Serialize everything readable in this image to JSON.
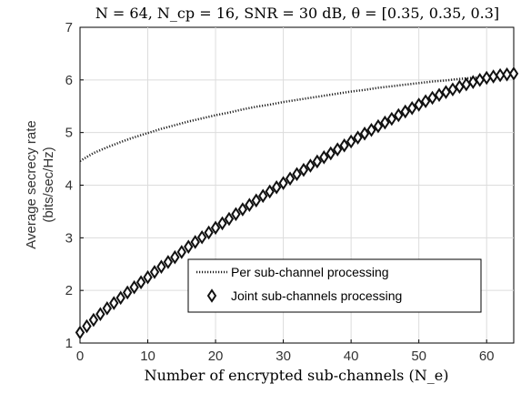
{
  "chart_data": {
    "type": "line",
    "title": "N = 64, N_cp = 16, SNR = 30 dB, θ = [0.35, 0.35, 0.3]",
    "xlabel": "Number of encrypted sub-channels (N_e)",
    "ylabel": "Average secrecy rate (bits/sec/Hz)",
    "ylabel_line1": "Average secrecy rate",
    "ylabel_line2": "(bits/sec/Hz)",
    "xlim": [
      0,
      64
    ],
    "ylim": [
      1,
      7
    ],
    "xticks": [
      0,
      10,
      20,
      30,
      40,
      50,
      60
    ],
    "yticks": [
      1,
      2,
      3,
      4,
      5,
      6,
      7
    ],
    "grid": true,
    "legend_position": "lower-right",
    "series": [
      {
        "name": "Per sub-channel processing",
        "style": "dotted",
        "color": "#222222",
        "x": [
          0,
          2,
          4,
          6,
          8,
          10,
          12,
          14,
          16,
          18,
          20,
          22,
          24,
          26,
          28,
          30,
          32,
          34,
          36,
          38,
          40,
          42,
          44,
          46,
          48,
          50,
          52,
          54,
          56,
          58,
          60,
          62,
          64
        ],
        "y": [
          4.46,
          4.61,
          4.72,
          4.82,
          4.91,
          4.99,
          5.07,
          5.14,
          5.21,
          5.27,
          5.33,
          5.38,
          5.44,
          5.49,
          5.53,
          5.58,
          5.62,
          5.66,
          5.7,
          5.74,
          5.78,
          5.81,
          5.85,
          5.88,
          5.91,
          5.94,
          5.97,
          5.99,
          6.02,
          6.04,
          6.07,
          6.09,
          6.11
        ]
      },
      {
        "name": "Joint sub-channels processing",
        "style": "diamond-markers",
        "color": "#222222",
        "x": [
          0,
          2,
          4,
          6,
          8,
          10,
          12,
          14,
          16,
          18,
          20,
          22,
          24,
          26,
          28,
          30,
          32,
          34,
          36,
          38,
          40,
          42,
          44,
          46,
          48,
          50,
          52,
          54,
          56,
          58,
          60,
          62,
          64
        ],
        "y": [
          1.2,
          1.44,
          1.66,
          1.86,
          2.06,
          2.25,
          2.45,
          2.63,
          2.83,
          3.01,
          3.19,
          3.36,
          3.54,
          3.71,
          3.88,
          4.04,
          4.21,
          4.37,
          4.53,
          4.68,
          4.83,
          4.98,
          5.12,
          5.26,
          5.4,
          5.53,
          5.66,
          5.77,
          5.87,
          5.96,
          6.04,
          6.09,
          6.12
        ]
      }
    ]
  }
}
